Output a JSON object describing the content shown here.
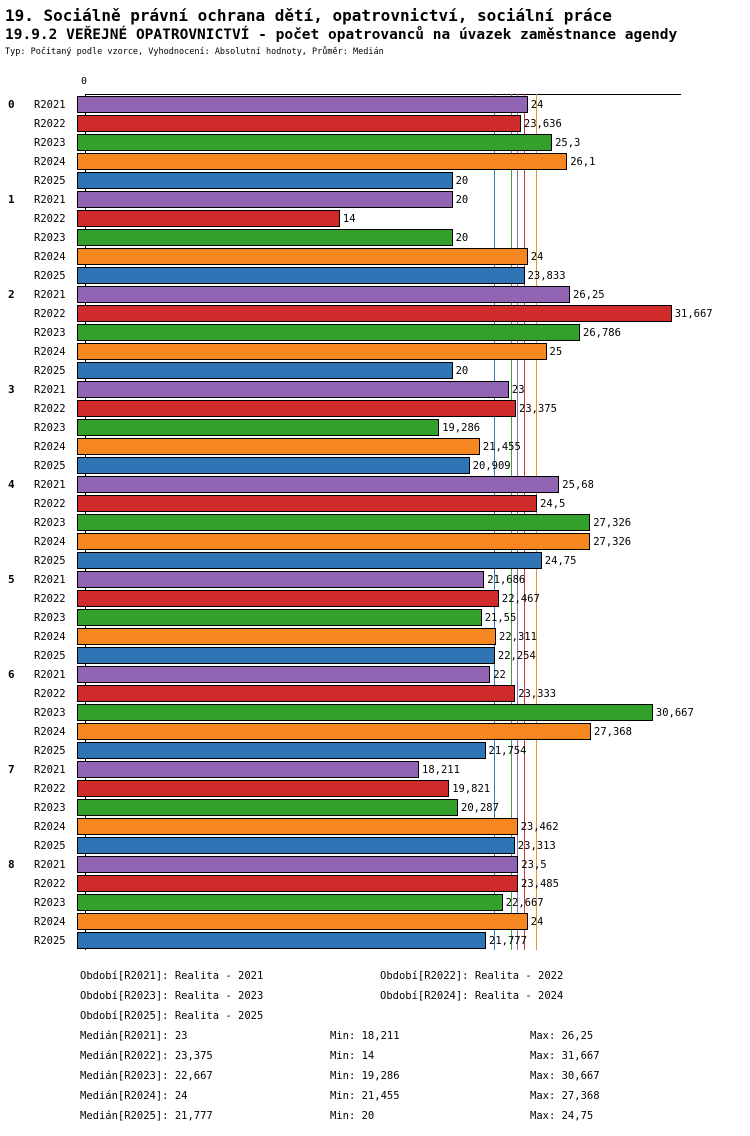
{
  "header": {
    "title1": "19. Sociálně právní ochrana dětí, opatrovnictví, sociální práce",
    "title2": "19.9.2 VEŘEJNÉ OPATROVNICTVÍ - počet opatrovanců na úvazek zaměstnance agendy",
    "subtitle": "Typ: Počítaný podle vzorce, Vyhodnocení: Absolutní hodnoty, Průměr: Medián"
  },
  "chart_data": {
    "type": "bar",
    "orientation": "horizontal",
    "value_axis_origin_label": "0",
    "xlim": [
      0,
      32
    ],
    "decimal_separator": ",",
    "legend_position": "bottom",
    "series": [
      {
        "name": "R2021",
        "legend": "Realita - 2021",
        "color": "#9265b4",
        "median": 23,
        "median_label": "23",
        "min": 18.211,
        "max": 26.25
      },
      {
        "name": "R2022",
        "legend": "Realita - 2022",
        "color": "#d02b2b",
        "median": 23.375,
        "median_label": "23,375",
        "min": 14,
        "max": 31.667
      },
      {
        "name": "R2023",
        "legend": "Realita - 2023",
        "color": "#33a02c",
        "median": 22.667,
        "median_label": "22,667",
        "min": 19.286,
        "max": 30.667
      },
      {
        "name": "R2024",
        "legend": "Realita - 2024",
        "color": "#f6861f",
        "median": 24,
        "median_label": "24",
        "min": 21.455,
        "max": 27.368
      },
      {
        "name": "R2025",
        "legend": "Realita - 2025",
        "color": "#2f74b5",
        "median": 21.777,
        "median_label": "21,777",
        "min": 20,
        "max": 24.75
      }
    ],
    "groups": [
      {
        "label": "0",
        "values": [
          24,
          23.636,
          25.3,
          26.1,
          20
        ],
        "labels": [
          "24",
          "23,636",
          "25,3",
          "26,1",
          "20"
        ]
      },
      {
        "label": "1",
        "values": [
          20,
          14,
          20,
          24,
          23.833
        ],
        "labels": [
          "20",
          "14",
          "20",
          "24",
          "23,833"
        ]
      },
      {
        "label": "2",
        "values": [
          26.25,
          31.667,
          26.786,
          25,
          20
        ],
        "labels": [
          "26,25",
          "31,667",
          "26,786",
          "25",
          "20"
        ]
      },
      {
        "label": "3",
        "values": [
          23,
          23.375,
          19.286,
          21.455,
          20.909
        ],
        "labels": [
          "23",
          "23,375",
          "19,286",
          "21,455",
          "20,909"
        ]
      },
      {
        "label": "4",
        "values": [
          25.68,
          24.5,
          27.326,
          27.326,
          24.75
        ],
        "labels": [
          "25,68",
          "24,5",
          "27,326",
          "27,326",
          "24,75"
        ]
      },
      {
        "label": "5",
        "values": [
          21.686,
          22.467,
          21.55,
          22.311,
          22.254
        ],
        "labels": [
          "21,686",
          "22,467",
          "21,55",
          "22,311",
          "22,254"
        ]
      },
      {
        "label": "6",
        "values": [
          22,
          23.333,
          30.667,
          27.368,
          21.754
        ],
        "labels": [
          "22",
          "23,333",
          "30,667",
          "27,368",
          "21,754"
        ]
      },
      {
        "label": "7",
        "values": [
          18.211,
          19.821,
          20.287,
          23.462,
          23.313
        ],
        "labels": [
          "18,211",
          "19,821",
          "20,287",
          "23,462",
          "23,313"
        ]
      },
      {
        "label": "8",
        "values": [
          23.5,
          23.485,
          22.667,
          24,
          21.777
        ],
        "labels": [
          "23,5",
          "23,485",
          "22,667",
          "24",
          "21,777"
        ]
      }
    ]
  },
  "footer": {
    "legend": [
      "Období[R2021]: Realita - 2021",
      "Období[R2022]: Realita - 2022",
      "Období[R2023]: Realita - 2023",
      "Období[R2024]: Realita - 2024",
      "Období[R2025]: Realita - 2025"
    ],
    "stats": [
      [
        "Medián[R2021]: 23",
        "Min: 18,211",
        "Max: 26,25"
      ],
      [
        "Medián[R2022]: 23,375",
        "Min: 14",
        "Max: 31,667"
      ],
      [
        "Medián[R2023]: 22,667",
        "Min: 19,286",
        "Max: 30,667"
      ],
      [
        "Medián[R2024]: 24",
        "Min: 21,455",
        "Max: 27,368"
      ],
      [
        "Medián[R2025]: 21,777",
        "Min: 20",
        "Max: 24,75"
      ]
    ]
  }
}
